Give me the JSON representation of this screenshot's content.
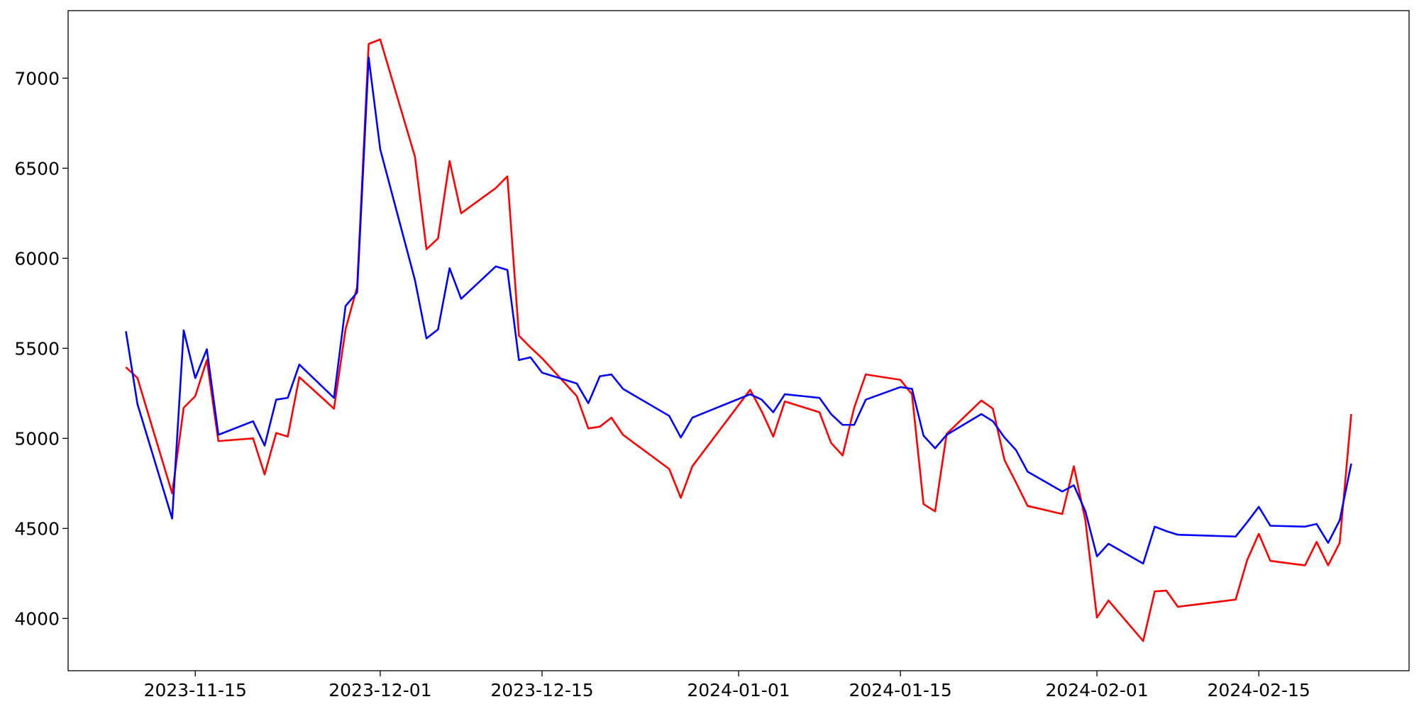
{
  "chart_data": {
    "type": "line",
    "x": [
      "2023-11-09",
      "2023-11-10",
      "2023-11-13",
      "2023-11-14",
      "2023-11-15",
      "2023-11-16",
      "2023-11-17",
      "2023-11-20",
      "2023-11-21",
      "2023-11-22",
      "2023-11-23",
      "2023-11-24",
      "2023-11-27",
      "2023-11-28",
      "2023-11-29",
      "2023-11-30",
      "2023-12-01",
      "2023-12-04",
      "2023-12-05",
      "2023-12-06",
      "2023-12-07",
      "2023-12-08",
      "2023-12-11",
      "2023-12-12",
      "2023-12-13",
      "2023-12-14",
      "2023-12-15",
      "2023-12-18",
      "2023-12-19",
      "2023-12-20",
      "2023-12-21",
      "2023-12-22",
      "2023-12-26",
      "2023-12-27",
      "2023-12-28",
      "2024-01-02",
      "2024-01-03",
      "2024-01-04",
      "2024-01-05",
      "2024-01-08",
      "2024-01-09",
      "2024-01-10",
      "2024-01-11",
      "2024-01-12",
      "2024-01-15",
      "2024-01-16",
      "2024-01-17",
      "2024-01-18",
      "2024-01-19",
      "2024-01-22",
      "2024-01-23",
      "2024-01-24",
      "2024-01-25",
      "2024-01-26",
      "2024-01-29",
      "2024-01-30",
      "2024-01-31",
      "2024-02-01",
      "2024-02-02",
      "2024-02-05",
      "2024-02-06",
      "2024-02-07",
      "2024-02-08",
      "2024-02-13",
      "2024-02-14",
      "2024-02-15",
      "2024-02-16",
      "2024-02-19",
      "2024-02-20",
      "2024-02-21",
      "2024-02-22",
      "2024-02-23"
    ],
    "series": [
      {
        "color": "#ff0000",
        "values": [
          5395,
          5335,
          4695,
          5170,
          5235,
          5435,
          4985,
          5000,
          4800,
          5030,
          5010,
          5340,
          5165,
          5605,
          5840,
          7190,
          7215,
          6565,
          6050,
          6110,
          6540,
          6250,
          6390,
          6455,
          5570,
          5505,
          5445,
          5235,
          5055,
          5065,
          5115,
          5020,
          4830,
          4670,
          4845,
          5270,
          5150,
          5010,
          5205,
          5145,
          4975,
          4905,
          5170,
          5355,
          5325,
          5245,
          4635,
          4595,
          5025,
          5210,
          5165,
          4880,
          4755,
          4625,
          4580,
          4845,
          4545,
          4005,
          4100,
          3875,
          4150,
          4155,
          4065,
          4105,
          4325,
          4470,
          4320,
          4295,
          4425,
          4295,
          4420,
          5135
        ]
      },
      {
        "color": "#0000ff",
        "values": [
          5595,
          5190,
          4555,
          5600,
          5335,
          5495,
          5020,
          5095,
          4960,
          5215,
          5225,
          5410,
          5225,
          5735,
          5810,
          7115,
          6605,
          5880,
          5555,
          5605,
          5945,
          5775,
          5955,
          5935,
          5435,
          5450,
          5365,
          5305,
          5195,
          5345,
          5355,
          5275,
          5125,
          5005,
          5115,
          5245,
          5215,
          5145,
          5245,
          5225,
          5135,
          5075,
          5075,
          5215,
          5285,
          5275,
          5015,
          4945,
          5020,
          5135,
          5095,
          5005,
          4935,
          4815,
          4705,
          4740,
          4595,
          4345,
          4415,
          4305,
          4510,
          4485,
          4465,
          4455,
          4535,
          4620,
          4515,
          4510,
          4525,
          4420,
          4545,
          4860
        ]
      }
    ],
    "xlim": [
      "2023-11-04",
      "2024-02-28"
    ],
    "xticks": [
      "2023-11-15",
      "2023-12-01",
      "2023-12-15",
      "2024-01-01",
      "2024-01-15",
      "2024-02-01",
      "2024-02-15"
    ],
    "ylim": [
      3710,
      7375
    ],
    "yticks": [
      4000,
      4500,
      5000,
      5500,
      6000,
      6500,
      7000
    ],
    "grid": false
  }
}
